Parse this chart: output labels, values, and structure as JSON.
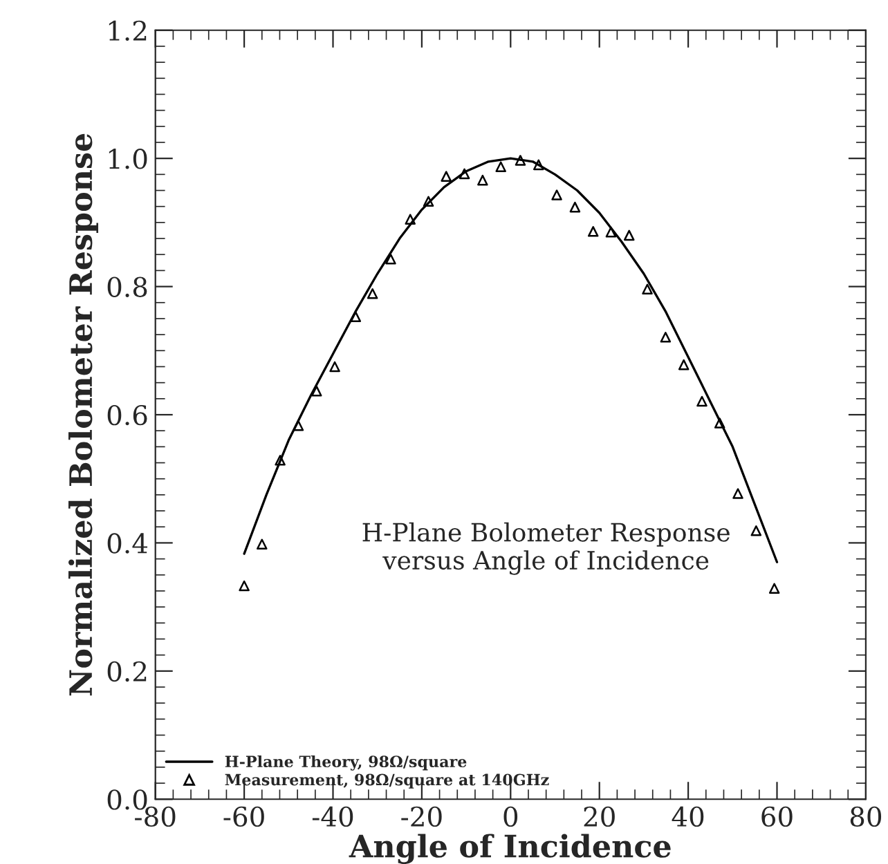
{
  "chart_data": {
    "type": "scatter",
    "xlabel": "Angle of Incidence",
    "ylabel": "Normalized Bolometer Response",
    "xlim": [
      -80,
      80
    ],
    "xticks": [
      -80,
      -60,
      -40,
      -20,
      0,
      20,
      40,
      60,
      80
    ],
    "ylim": [
      0,
      1.2
    ],
    "yticks": [
      {
        "value": 0,
        "label": "0.0"
      },
      0.2,
      0.4,
      0.6,
      0.8,
      {
        "value": 1,
        "label": "1.0"
      },
      1.2
    ],
    "grid": false,
    "legend": "bottom left",
    "annotations": [
      "H-Plane Bolometer Response\nversus Angle of Incidence"
    ],
    "series": [
      {
        "name": "H-Plane Theory, 98Ω/square",
        "type": "line",
        "color": "#000000",
        "marker": "none",
        "line_style": "solid",
        "x": [
          -60,
          -55,
          -50,
          -45,
          -40,
          -35,
          -30,
          -25,
          -20,
          -15,
          -10,
          -5,
          0,
          5,
          10,
          15,
          20,
          25,
          30,
          35,
          40,
          45,
          50,
          55,
          60
        ],
        "values": [
          0.383,
          0.475,
          0.56,
          0.63,
          0.695,
          0.76,
          0.82,
          0.875,
          0.92,
          0.955,
          0.98,
          0.995,
          1.0,
          0.995,
          0.975,
          0.95,
          0.915,
          0.87,
          0.82,
          0.76,
          0.69,
          0.62,
          0.55,
          0.46,
          0.37
        ]
      },
      {
        "name": "Measurement, 98Ω/square at 140GHz",
        "color": "#000000",
        "marker": "triangle",
        "x": [
          -60,
          -56,
          -51.9,
          -47.8,
          -43.7,
          -39.6,
          -34.9,
          -31.1,
          -27,
          -22.6,
          -18.5,
          -14.5,
          -10.4,
          -6.3,
          -2.2,
          2.2,
          6.3,
          10.4,
          14.5,
          18.6,
          22.6,
          26.7,
          30.8,
          34.9,
          39,
          43.1,
          47.1,
          51.2,
          55.3,
          59.4
        ],
        "values": [
          0.333,
          0.398,
          0.529,
          0.583,
          0.637,
          0.675,
          0.753,
          0.789,
          0.843,
          0.905,
          0.933,
          0.972,
          0.976,
          0.966,
          0.987,
          0.997,
          0.99,
          0.943,
          0.924,
          0.886,
          0.885,
          0.88,
          0.796,
          0.721,
          0.678,
          0.621,
          0.587,
          0.477,
          0.419,
          0.329
        ]
      }
    ]
  }
}
